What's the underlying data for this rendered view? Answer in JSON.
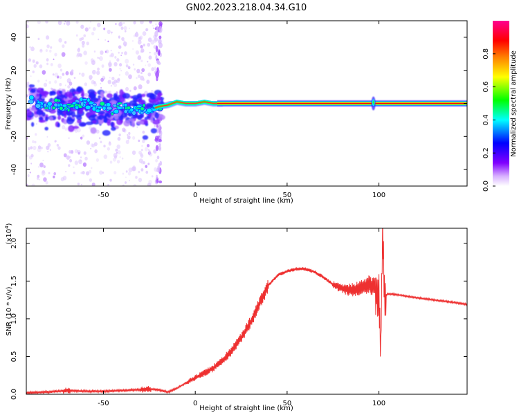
{
  "title": "GN02.2023.218.04.34.G10",
  "chart_data": [
    {
      "type": "heatmap",
      "xlabel": "Height of straight line (km)",
      "ylabel": "Frequency (Hz)",
      "xlim": [
        -92,
        148
      ],
      "ylim": [
        -50,
        50
      ],
      "x_ticks": [
        -50,
        0,
        50,
        100
      ],
      "y_ticks": [
        -40,
        -20,
        0,
        20,
        40
      ],
      "x_tick_labels": [
        "-50",
        "0",
        "50",
        "100"
      ],
      "y_tick_labels": [
        "-40",
        "-20",
        "0",
        "20",
        "40"
      ],
      "colorbar": {
        "label": "Normalized spectral amplitude",
        "range": [
          0,
          1
        ],
        "ticks": [
          0.0,
          0.2,
          0.4,
          0.6,
          0.8
        ],
        "tick_labels": [
          "0.0",
          "0.2",
          "0.4",
          "0.6",
          "0.8"
        ],
        "colors": [
          "#ffffff",
          "#8000ff",
          "#0000ff",
          "#00ffff",
          "#00ff00",
          "#ffff00",
          "#ff8000",
          "#ff0000",
          "#ff0080"
        ]
      },
      "ridge": {
        "x": [
          -90,
          -85,
          -80,
          -75,
          -70,
          -65,
          -60,
          -55,
          -50,
          -45,
          -40,
          -35,
          -30,
          -25,
          -20,
          -15,
          -10,
          -5,
          0,
          5,
          10,
          15,
          50,
          95,
          97,
          100,
          148
        ],
        "freq": [
          2,
          0,
          -2,
          0,
          -3,
          -1,
          1,
          -3,
          -2,
          -4,
          -2,
          -5,
          -3,
          -4,
          -2,
          -1,
          1,
          0,
          0,
          1,
          0,
          0,
          0,
          0,
          1,
          0,
          0
        ]
      }
    },
    {
      "type": "line",
      "xlabel": "Height of straight line (km)",
      "ylabel": "SNR (10 * v/v)",
      "y_scale_note": "(x10",
      "y_scale_exp": "4",
      "xlim": [
        -92,
        148
      ],
      "ylim": [
        0,
        2.2
      ],
      "x_ticks": [
        -50,
        0,
        50,
        100
      ],
      "y_ticks": [
        0.0,
        0.5,
        1.0,
        1.5,
        2.0
      ],
      "x_tick_labels": [
        "-50",
        "0",
        "50",
        "100"
      ],
      "y_tick_labels": [
        "0.0",
        "0.5",
        "1.0",
        "1.5",
        "2.0"
      ],
      "color": "#ee3030",
      "series": [
        {
          "x": [
            -92,
            -80,
            -70,
            -60,
            -50,
            -40,
            -30,
            -25,
            -20,
            -15,
            -10,
            -5,
            0,
            5,
            10,
            15,
            20,
            25,
            30,
            35,
            40,
            45,
            50,
            55,
            60,
            65,
            70,
            75,
            80,
            85,
            90,
            95,
            98,
            100,
            101,
            102,
            103,
            105,
            110,
            120,
            130,
            140,
            148
          ],
          "values": [
            0.02,
            0.03,
            0.05,
            0.04,
            0.04,
            0.05,
            0.06,
            0.07,
            0.06,
            0.03,
            0.08,
            0.15,
            0.22,
            0.28,
            0.35,
            0.45,
            0.58,
            0.75,
            0.95,
            1.2,
            1.45,
            1.58,
            1.63,
            1.66,
            1.66,
            1.62,
            1.55,
            1.45,
            1.4,
            1.38,
            1.42,
            1.45,
            1.4,
            1.35,
            0.6,
            2.2,
            1.3,
            1.33,
            1.32,
            1.28,
            1.25,
            1.22,
            1.19
          ]
        }
      ]
    }
  ]
}
